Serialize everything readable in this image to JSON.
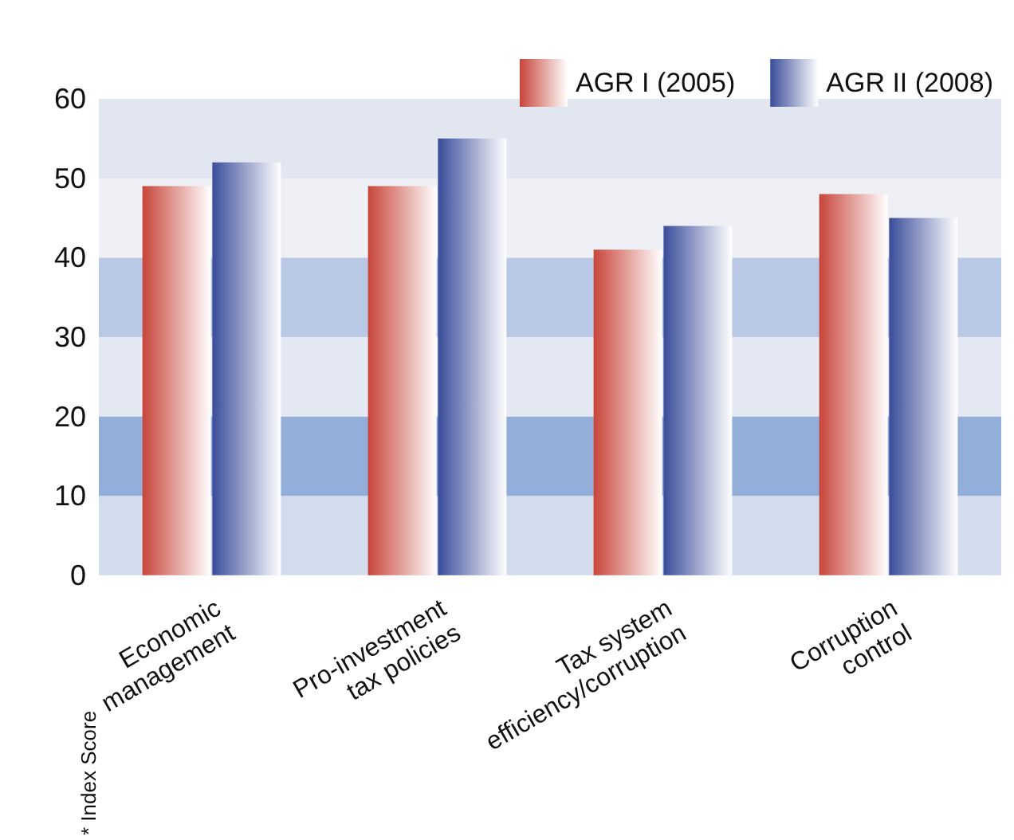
{
  "chart_data": {
    "type": "bar",
    "ylabel": "* Index Score",
    "categories": [
      "Economic\nmanagement",
      "Pro-investment\ntax policies",
      "Tax system\nefficiency/corruption",
      "Corruption\ncontrol"
    ],
    "series": [
      {
        "name": "AGR I (2005)",
        "color": "#c8453a",
        "values": [
          49,
          49,
          41,
          48
        ]
      },
      {
        "name": "AGR II (2008)",
        "color": "#3a4c9a",
        "values": [
          52,
          55,
          44,
          45
        ]
      }
    ],
    "bands": [
      {
        "axis": "y",
        "from": 0,
        "to": 10,
        "color": "#d3dcec"
      },
      {
        "axis": "y",
        "from": 10,
        "to": 20,
        "color": "#93afd9"
      },
      {
        "axis": "y",
        "from": 20,
        "to": 30,
        "color": "#e3e8f2"
      },
      {
        "axis": "y",
        "from": 30,
        "to": 40,
        "color": "#b9c9e5"
      },
      {
        "axis": "y",
        "from": 40,
        "to": 50,
        "color": "#eef0f5"
      },
      {
        "axis": "y",
        "from": 50,
        "to": 60,
        "color": "#e1e6f1"
      }
    ],
    "ylim": [
      0,
      60
    ],
    "yticks": [
      0,
      10,
      20,
      30,
      40,
      50,
      60
    ],
    "legend": "top right"
  }
}
